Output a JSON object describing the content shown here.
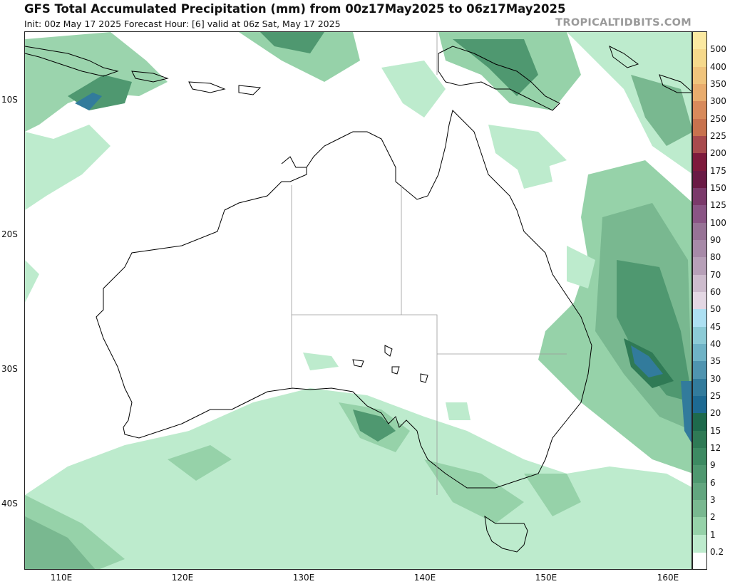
{
  "header": {
    "title": "GFS Total Accumulated Precipitation (mm) from 00z17May2025 to 06z17May2025",
    "subtitle": "Init: 00z May 17 2025   Forecast Hour: [6]   valid at 06z Sat, May 17 2025",
    "brand": "TROPICALTIDBITS.COM"
  },
  "axes": {
    "lat_labels": [
      "10S",
      "20S",
      "30S",
      "40S"
    ],
    "lon_labels": [
      "110E",
      "120E",
      "130E",
      "140E",
      "150E",
      "160E"
    ]
  },
  "colorbar": {
    "labels": [
      "500",
      "400",
      "350",
      "300",
      "250",
      "225",
      "200",
      "175",
      "150",
      "125",
      "100",
      "90",
      "80",
      "70",
      "60",
      "50",
      "45",
      "40",
      "35",
      "30",
      "25",
      "20",
      "15",
      "12",
      "9",
      "6",
      "3",
      "2",
      "1",
      "0.2"
    ],
    "colors": [
      "#fbe9a1",
      "#f6d98b",
      "#f0c47c",
      "#e9ac6d",
      "#d88a5b",
      "#c8724e",
      "#a84a4d",
      "#7e1a3c",
      "#6a1a45",
      "#7b3a6b",
      "#8a5585",
      "#977396",
      "#a78aa8",
      "#b7a0b8",
      "#cdbccd",
      "#e3d7e3",
      "#ade0f2",
      "#8ccbd6",
      "#6fb3c6",
      "#4f94b0",
      "#327b9c",
      "#1d6a93",
      "#1e6a4c",
      "#2f7a55",
      "#3d8a62",
      "#4f9870",
      "#62a67f",
      "#79b890",
      "#96d2a9",
      "#bdebcd"
    ]
  },
  "map_features": {
    "precip_colors": [
      "#bdebcd",
      "#96d2a9",
      "#79b890",
      "#4f9870",
      "#2f7a55",
      "#327b9c"
    ]
  }
}
